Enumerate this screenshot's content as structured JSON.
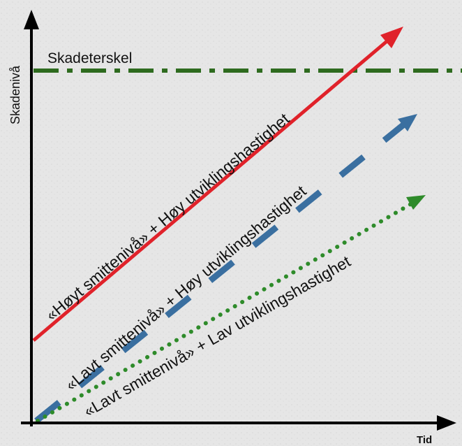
{
  "axes": {
    "y_label": "Skadenivå",
    "x_label": "Tid"
  },
  "threshold": {
    "label": "Skadeterskel",
    "color": "#2e6b1f"
  },
  "lines": [
    {
      "label": "«Høyt smittenivå» + Høy utviklingshastighet",
      "color": "#e0222a",
      "style": "solid"
    },
    {
      "label": "«Lavt smittenivå» + Høy utviklingshastighet",
      "color": "#3a6fa0",
      "style": "dashed"
    },
    {
      "label": "«Lavt smittenivå» + Lav utviklingshastighet",
      "color": "#2e8b2a",
      "style": "dotted"
    }
  ]
}
